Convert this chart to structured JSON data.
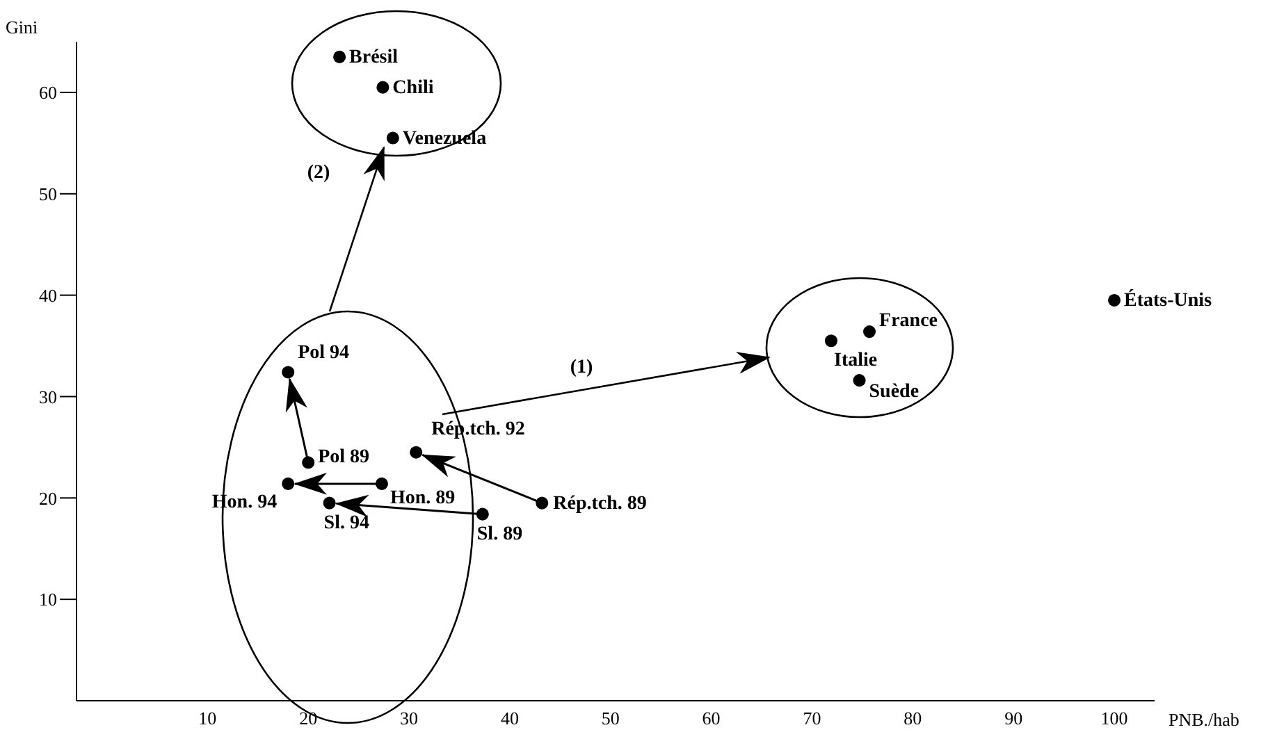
{
  "chart_data": {
    "type": "scatter",
    "xlabel": "PNB./hab",
    "ylabel": "Gini",
    "xlim": [
      -3,
      104
    ],
    "ylim": [
      0,
      65
    ],
    "xticks": [
      10,
      20,
      30,
      40,
      50,
      60,
      70,
      80,
      90,
      100
    ],
    "yticks": [
      10,
      20,
      30,
      40,
      50,
      60
    ],
    "grid": false,
    "legend": false,
    "marker": "circle",
    "series": [
      {
        "name": "Brésil",
        "color": "#000000",
        "x": [
          23.1
        ],
        "values": [
          63.5
        ]
      },
      {
        "name": "Chili",
        "color": "#000000",
        "x": [
          27.4
        ],
        "values": [
          60.5
        ]
      },
      {
        "name": "Venezuela",
        "color": "#000000",
        "x": [
          28.4
        ],
        "values": [
          55.5
        ]
      },
      {
        "name": "France",
        "color": "#000000",
        "x": [
          75.7
        ],
        "values": [
          36.4
        ]
      },
      {
        "name": "Italie",
        "color": "#000000",
        "x": [
          71.9
        ],
        "values": [
          35.5
        ]
      },
      {
        "name": "Suède",
        "color": "#000000",
        "x": [
          74.7
        ],
        "values": [
          31.6
        ]
      },
      {
        "name": "États-Unis",
        "color": "#000000",
        "x": [
          100
        ],
        "values": [
          39.5
        ]
      },
      {
        "name": "Pol 94",
        "color": "#000000",
        "x": [
          18
        ],
        "values": [
          32.4
        ]
      },
      {
        "name": "Pol 89",
        "color": "#000000",
        "x": [
          20
        ],
        "values": [
          23.5
        ]
      },
      {
        "name": "Rép.tch. 92",
        "color": "#000000",
        "x": [
          30.7
        ],
        "values": [
          24.5
        ]
      },
      {
        "name": "Hon. 89",
        "color": "#000000",
        "x": [
          27.3
        ],
        "values": [
          21.4
        ]
      },
      {
        "name": "Hon. 94",
        "color": "#000000",
        "x": [
          18
        ],
        "values": [
          21.4
        ]
      },
      {
        "name": "Sl. 94",
        "color": "#000000",
        "x": [
          22.1
        ],
        "values": [
          19.5
        ]
      },
      {
        "name": "Sl. 89",
        "color": "#000000",
        "x": [
          37.3
        ],
        "values": [
          18.4
        ]
      },
      {
        "name": "Rép.tch. 89",
        "color": "#000000",
        "x": [
          43.2
        ],
        "values": [
          19.5
        ]
      }
    ],
    "annotations": [
      "(1)",
      "(2)"
    ]
  }
}
